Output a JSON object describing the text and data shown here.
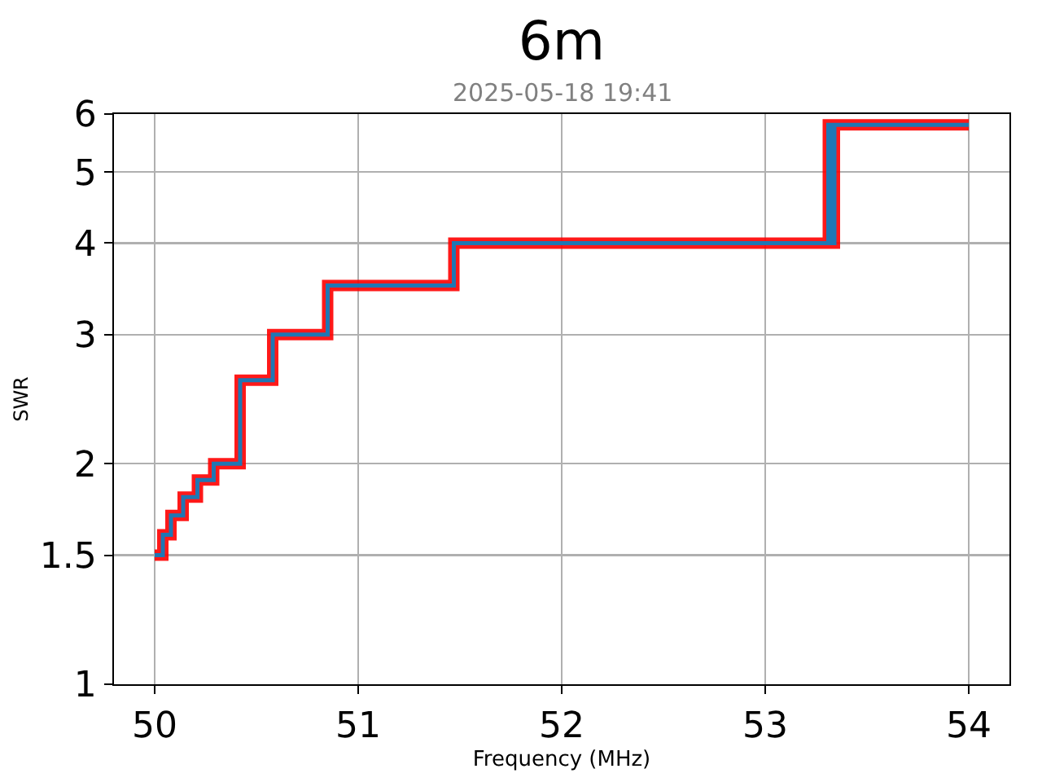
{
  "chart_data": {
    "type": "step",
    "title": "6m",
    "subtitle": "2025-05-18 19:41",
    "xlabel": "Frequency (MHz)",
    "ylabel": "SWR",
    "x": [
      50.0,
      50.04,
      50.08,
      50.14,
      50.21,
      50.29,
      50.42,
      50.58,
      50.85,
      51.47,
      53.31,
      53.33,
      53.34,
      54.0
    ],
    "series": [
      {
        "color": "#ff0000",
        "values": [
          1.5,
          1.6,
          1.7,
          1.8,
          1.9,
          2.0,
          2.6,
          3.0,
          3.5,
          4.0,
          5.8,
          4.0,
          5.8,
          5.8
        ]
      },
      {
        "color": "#1f77b4",
        "values": [
          1.5,
          1.6,
          1.7,
          1.8,
          1.9,
          2.0,
          2.6,
          3.0,
          3.5,
          4.0,
          5.8,
          4.0,
          5.8,
          5.8
        ]
      }
    ],
    "xlim": [
      49.8,
      54.2
    ],
    "xticks": [
      50,
      51,
      52,
      53,
      54
    ],
    "ylim": [
      1,
      6
    ],
    "yticks": [
      1,
      1.5,
      2,
      3,
      4,
      5,
      6
    ],
    "log": true,
    "grid": true
  }
}
